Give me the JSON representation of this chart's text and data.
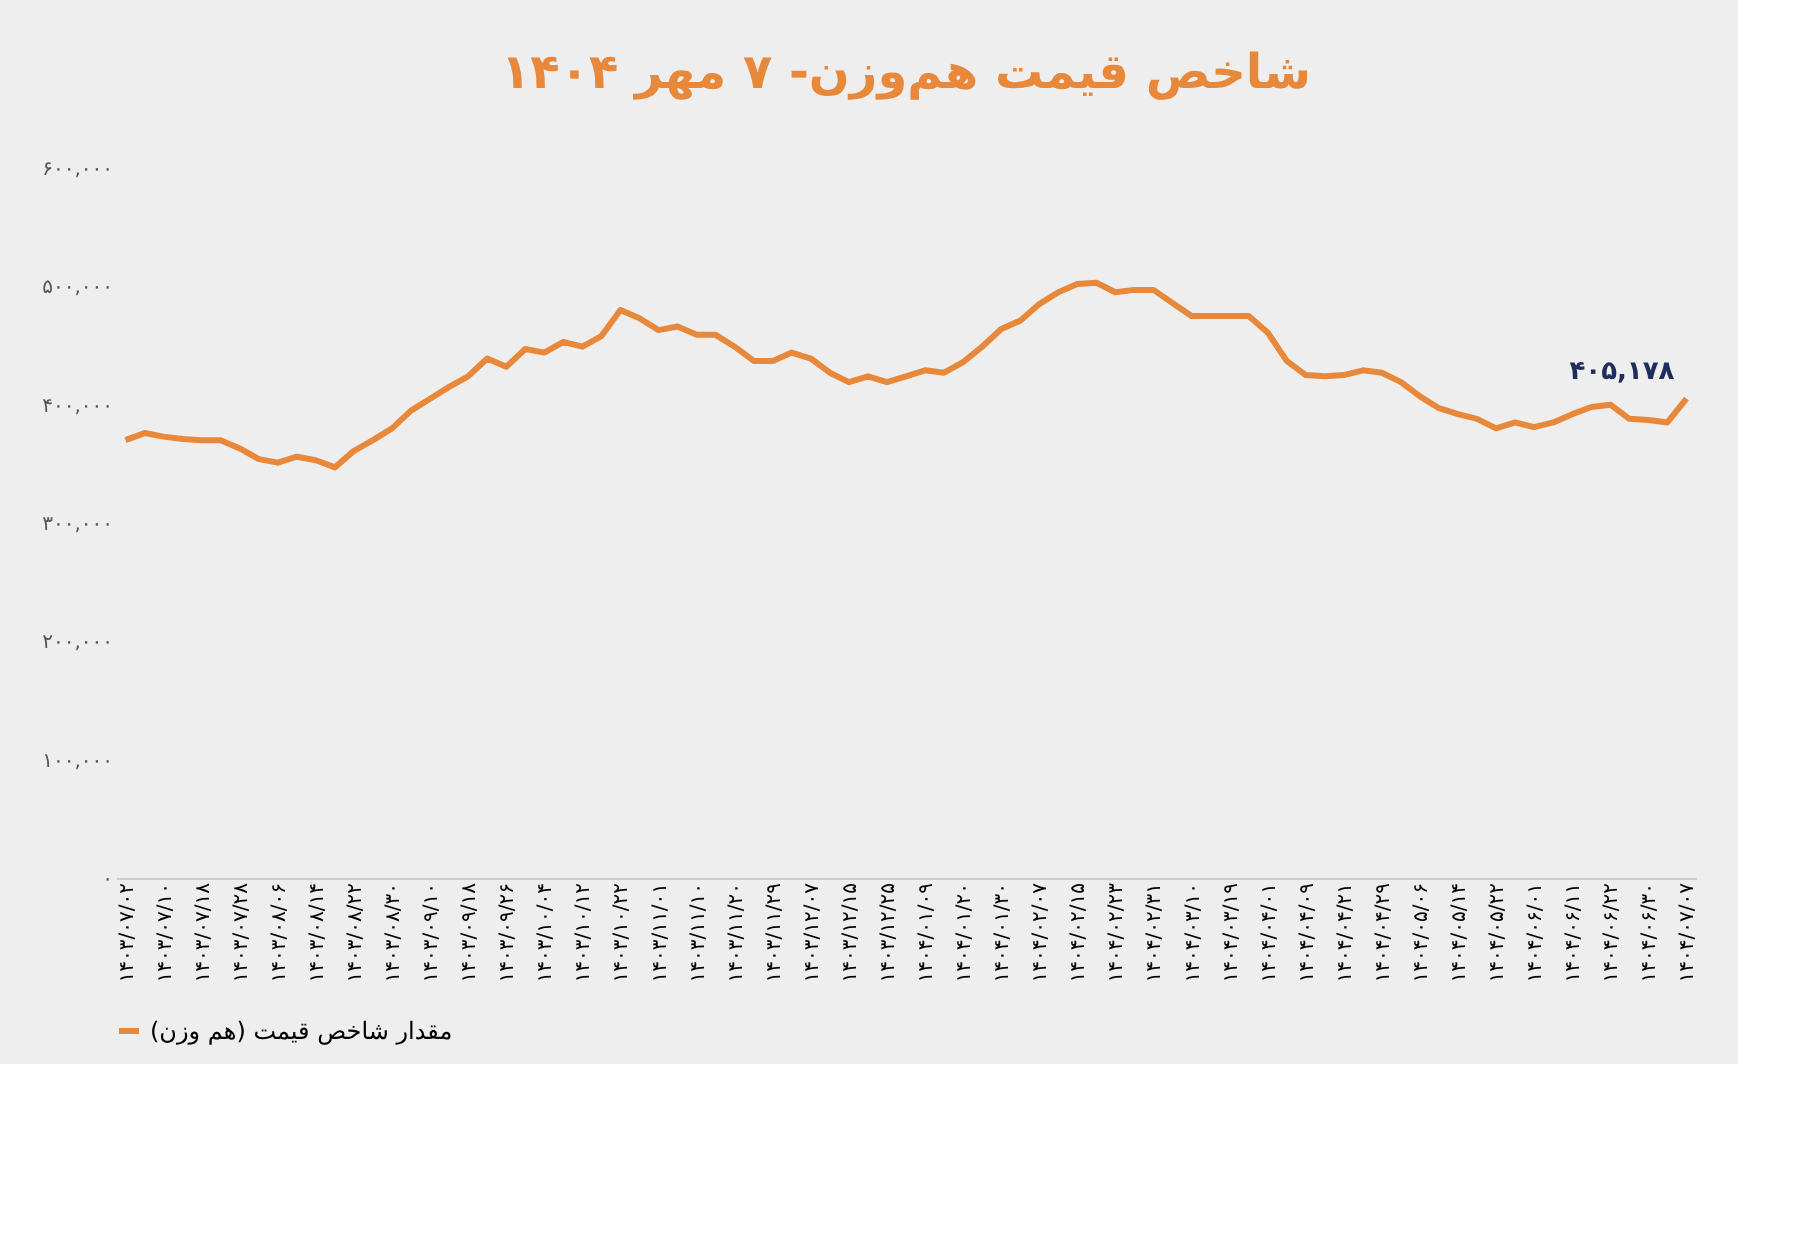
{
  "chart_data": {
    "type": "line",
    "title": "شاخص قیمت هم‌وزن- ۷ مهر ۱۴۰۴",
    "categories": [
      "۱۴۰۳/۰۷/۰۲",
      null,
      "۱۴۰۳/۰۷/۱۰",
      null,
      "۱۴۰۳/۰۷/۱۸",
      null,
      "۱۴۰۳/۰۷/۲۸",
      null,
      "۱۴۰۳/۰۸/۰۶",
      null,
      "۱۴۰۳/۰۸/۱۴",
      null,
      "۱۴۰۳/۰۸/۲۲",
      null,
      "۱۴۰۳/۰۸/۳۰",
      null,
      "۱۴۰۳/۰۹/۱۰",
      null,
      "۱۴۰۳/۰۹/۱۸",
      null,
      "۱۴۰۳/۰۹/۲۶",
      null,
      "۱۴۰۳/۱۰/۰۴",
      null,
      "۱۴۰۳/۱۰/۱۲",
      null,
      "۱۴۰۳/۱۰/۲۲",
      null,
      "۱۴۰۳/۱۱/۰۱",
      null,
      "۱۴۰۳/۱۱/۱۰",
      null,
      "۱۴۰۳/۱۱/۲۰",
      null,
      "۱۴۰۳/۱۱/۲۹",
      null,
      "۱۴۰۳/۱۲/۰۷",
      null,
      "۱۴۰۳/۱۲/۱۵",
      null,
      "۱۴۰۳/۱۲/۲۵",
      null,
      "۱۴۰۴/۰۱/۰۹",
      null,
      "۱۴۰۴/۰۱/۲۰",
      null,
      "۱۴۰۴/۰۱/۳۰",
      null,
      "۱۴۰۴/۰۲/۰۷",
      null,
      "۱۴۰۴/۰۲/۱۵",
      null,
      "۱۴۰۴/۰۲/۲۳",
      null,
      "۱۴۰۴/۰۲/۳۱",
      null,
      "۱۴۰۴/۰۳/۱۰",
      null,
      "۱۴۰۴/۰۳/۱۹",
      null,
      "۱۴۰۴/۰۴/۰۱",
      null,
      "۱۴۰۴/۰۴/۰۹",
      null,
      "۱۴۰۴/۰۴/۲۱",
      null,
      "۱۴۰۴/۰۴/۲۹",
      null,
      "۱۴۰۴/۰۵/۰۶",
      null,
      "۱۴۰۴/۰۵/۱۴",
      null,
      "۱۴۰۴/۰۵/۲۲",
      null,
      "۱۴۰۴/۰۶/۰۱",
      null,
      "۱۴۰۴/۰۶/۱۱",
      null,
      "۱۴۰۴/۰۶/۲۲",
      null,
      "۱۴۰۴/۰۶/۳۰",
      null,
      "۱۴۰۴/۰۷/۰۷"
    ],
    "series": [
      {
        "name": "مقدار شاخص قیمت (هم وزن)",
        "color": "#e8883a",
        "values": [
          370000,
          376000,
          373000,
          371000,
          370000,
          370000,
          363000,
          354000,
          351000,
          356000,
          353000,
          347000,
          361000,
          370000,
          380000,
          395000,
          405000,
          415000,
          424000,
          439000,
          432000,
          447000,
          444000,
          453000,
          449000,
          458000,
          480000,
          473000,
          463000,
          466000,
          459000,
          459000,
          449000,
          437000,
          437000,
          444000,
          439000,
          427000,
          419000,
          424000,
          419000,
          424000,
          429000,
          427000,
          436000,
          449000,
          464000,
          471000,
          485000,
          495000,
          502000,
          503000,
          495000,
          497000,
          497000,
          486000,
          475000,
          475000,
          475000,
          475000,
          461000,
          437000,
          425000,
          424000,
          425000,
          429000,
          427000,
          419000,
          407000,
          397000,
          392000,
          388000,
          380000,
          385000,
          381000,
          385000,
          392000,
          398000,
          400000,
          388000,
          387000,
          385000,
          405178
        ]
      }
    ],
    "ylim": [
      0,
      600000
    ],
    "yticks": [
      {
        "value": 0,
        "label": "۰"
      },
      {
        "value": 100000,
        "label": "۱۰۰,۰۰۰"
      },
      {
        "value": 200000,
        "label": "۲۰۰,۰۰۰"
      },
      {
        "value": 300000,
        "label": "۳۰۰,۰۰۰"
      },
      {
        "value": 400000,
        "label": "۴۰۰,۰۰۰"
      },
      {
        "value": 500000,
        "label": "۵۰۰,۰۰۰"
      },
      {
        "value": 600000,
        "label": "۶۰۰,۰۰۰"
      }
    ],
    "annotations": [
      {
        "text": "۴۰۵,۱۷۸",
        "x": "۱۴۰۴/۰۷/۰۷",
        "y": 405178
      }
    ],
    "grid": false,
    "legend": "bottom",
    "marker": "none",
    "line_style": "solid"
  }
}
